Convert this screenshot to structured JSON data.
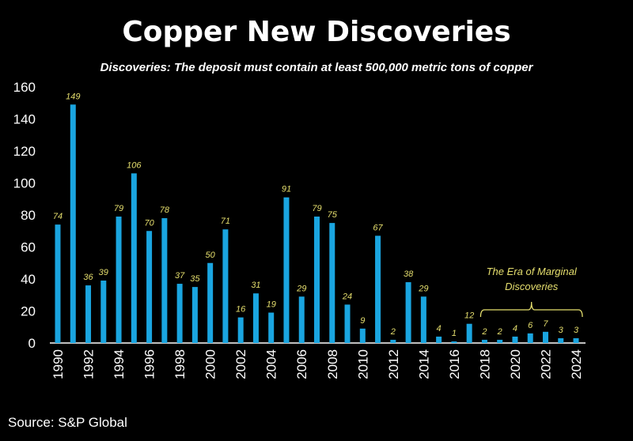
{
  "chart_data": {
    "type": "bar",
    "title": "Copper New Discoveries",
    "subtitle": "Discoveries: The deposit must contain at least 500,000 metric tons of copper",
    "xlabel": "",
    "ylabel": "",
    "ylim": [
      0,
      160
    ],
    "yticks": [
      0,
      20,
      40,
      60,
      80,
      100,
      120,
      140,
      160
    ],
    "categories": [
      1990,
      1991,
      1992,
      1993,
      1994,
      1995,
      1996,
      1997,
      1998,
      1999,
      2000,
      2001,
      2002,
      2003,
      2004,
      2005,
      2006,
      2007,
      2008,
      2009,
      2010,
      2011,
      2012,
      2013,
      2014,
      2015,
      2016,
      2017,
      2018,
      2019,
      2020,
      2021,
      2022,
      2023,
      2024
    ],
    "xtick_labels": [
      "1990",
      "1992",
      "1994",
      "1996",
      "1998",
      "2000",
      "2002",
      "2004",
      "2006",
      "2008",
      "2010",
      "2012",
      "2014",
      "2016",
      "2018",
      "2020",
      "2022",
      "2024"
    ],
    "values": [
      74,
      149,
      36,
      39,
      79,
      106,
      70,
      78,
      37,
      35,
      50,
      71,
      16,
      31,
      19,
      91,
      29,
      79,
      75,
      24,
      9,
      67,
      2,
      38,
      29,
      4,
      1,
      12,
      2,
      2,
      4,
      6,
      7,
      3,
      3
    ],
    "grid": false,
    "legend": "none",
    "annotation": {
      "lines": [
        "The Era of Marginal",
        "Discoveries"
      ],
      "from": 2018,
      "to": 2024
    },
    "colors": {
      "bar": "#1aa5e0",
      "label": "#e6df6e",
      "background": "#000000",
      "text": "#ffffff"
    }
  },
  "source": "Source: S&P Global"
}
